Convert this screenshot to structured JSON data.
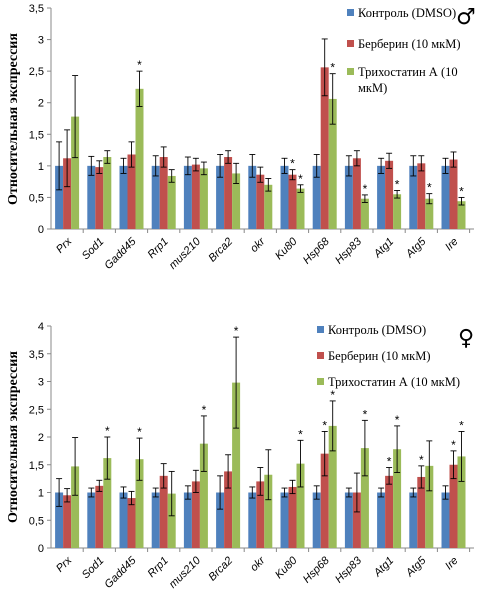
{
  "colors": {
    "control": "#4F81BD",
    "berberine": "#C0504D",
    "trichostatin": "#9BBB59",
    "axis": "#888888",
    "error": "#000000"
  },
  "chart_data": [
    {
      "type": "bar",
      "sex_symbol": "♂",
      "ylabel": "Относительная  экспрессия",
      "ylim": [
        0,
        3.5
      ],
      "yticks": [
        "0",
        "0,5",
        "1",
        "1,5",
        "2",
        "2,5",
        "3",
        "3,5"
      ],
      "ytick_values": [
        0,
        0.5,
        1,
        1.5,
        2,
        2.5,
        3,
        3.5
      ],
      "grid": false,
      "legend_placement": "top-right",
      "categories": [
        "Prx",
        "Sod1",
        "Gadd45",
        "Rrp1",
        "mus210",
        "Brca2",
        "okr",
        "Ku80",
        "Hsp68",
        "Hsp83",
        "Atg1",
        "Atg5",
        "Ire"
      ],
      "series": [
        {
          "name": "Контроль (DMSO)",
          "color_key": "control",
          "values": [
            1,
            1,
            1,
            1,
            1,
            1,
            1,
            1,
            1,
            1,
            1,
            1,
            1
          ],
          "errors": [
            0.38,
            0.15,
            0.12,
            0.16,
            0.14,
            0.18,
            0.18,
            0.12,
            0.18,
            0.16,
            0.12,
            0.16,
            0.12
          ],
          "significant": [
            false,
            false,
            false,
            false,
            false,
            false,
            false,
            false,
            false,
            false,
            false,
            false,
            false
          ]
        },
        {
          "name": "Берберин (10 мкМ)",
          "color_key": "berberine",
          "values": [
            1.12,
            0.98,
            1.18,
            1.14,
            1.02,
            1.14,
            0.86,
            0.86,
            2.56,
            1.12,
            1.08,
            1.04,
            1.1
          ],
          "errors": [
            0.45,
            0.1,
            0.2,
            0.16,
            0.1,
            0.1,
            0.12,
            0.08,
            0.45,
            0.12,
            0.12,
            0.12,
            0.12
          ],
          "significant": [
            false,
            false,
            false,
            false,
            false,
            false,
            false,
            true,
            false,
            false,
            false,
            false,
            false
          ]
        },
        {
          "name": "Трихостатин А (10 мкМ)",
          "color_key": "trichostatin",
          "values": [
            1.78,
            1.14,
            2.22,
            0.84,
            0.96,
            0.88,
            0.7,
            0.64,
            2.06,
            0.48,
            0.55,
            0.48,
            0.44
          ],
          "errors": [
            0.65,
            0.1,
            0.28,
            0.1,
            0.1,
            0.16,
            0.1,
            0.06,
            0.4,
            0.06,
            0.06,
            0.08,
            0.06
          ],
          "significant": [
            false,
            false,
            true,
            false,
            false,
            false,
            false,
            true,
            true,
            true,
            true,
            true,
            true
          ]
        }
      ],
      "significance_label": "*"
    },
    {
      "type": "bar",
      "sex_symbol": "♀",
      "ylabel": "Относительная  экспрессия",
      "ylim": [
        0,
        4
      ],
      "yticks": [
        "0",
        "0,5",
        "1",
        "1,5",
        "2",
        "2,5",
        "3",
        "3,5",
        "4"
      ],
      "ytick_values": [
        0,
        0.5,
        1,
        1.5,
        2,
        2.5,
        3,
        3.5,
        4
      ],
      "grid": false,
      "legend_placement": "top-right",
      "categories": [
        "Prx",
        "Sod1",
        "Gadd45",
        "Rrp1",
        "mus210",
        "Brca2",
        "okr",
        "Ku80",
        "Hsp68",
        "Hsp83",
        "Atg1",
        "Atg5",
        "Ire"
      ],
      "series": [
        {
          "name": "Контроль (DMSO)",
          "color_key": "control",
          "values": [
            1,
            1,
            1,
            1,
            1,
            1,
            1,
            1,
            1,
            1,
            1,
            1,
            1
          ],
          "errors": [
            0.25,
            0.08,
            0.1,
            0.08,
            0.12,
            0.3,
            0.1,
            0.08,
            0.12,
            0.08,
            0.08,
            0.08,
            0.12
          ],
          "significant": [
            false,
            false,
            false,
            false,
            false,
            false,
            false,
            false,
            false,
            false,
            false,
            false,
            false
          ]
        },
        {
          "name": "Берберин (10 мкМ)",
          "color_key": "berberine",
          "values": [
            0.95,
            1.12,
            0.9,
            1.3,
            1.2,
            1.38,
            1.2,
            1.1,
            1.7,
            1.0,
            1.3,
            1.28,
            1.5
          ],
          "errors": [
            0.12,
            0.1,
            0.12,
            0.22,
            0.2,
            0.3,
            0.25,
            0.12,
            0.4,
            0.35,
            0.15,
            0.2,
            0.25
          ],
          "significant": [
            false,
            false,
            false,
            false,
            false,
            false,
            false,
            false,
            true,
            false,
            true,
            true,
            true
          ]
        },
        {
          "name": "Трихостатин А (10 мкМ)",
          "color_key": "trichostatin",
          "values": [
            1.47,
            1.62,
            1.6,
            0.98,
            1.88,
            2.98,
            1.32,
            1.52,
            2.2,
            1.8,
            1.78,
            1.48,
            1.65
          ],
          "errors": [
            0.52,
            0.38,
            0.38,
            0.4,
            0.5,
            0.82,
            0.45,
            0.42,
            0.45,
            0.5,
            0.42,
            0.45,
            0.45
          ],
          "significant": [
            false,
            true,
            true,
            false,
            true,
            true,
            false,
            true,
            true,
            true,
            true,
            false,
            true
          ]
        }
      ],
      "significance_label": "*"
    }
  ]
}
